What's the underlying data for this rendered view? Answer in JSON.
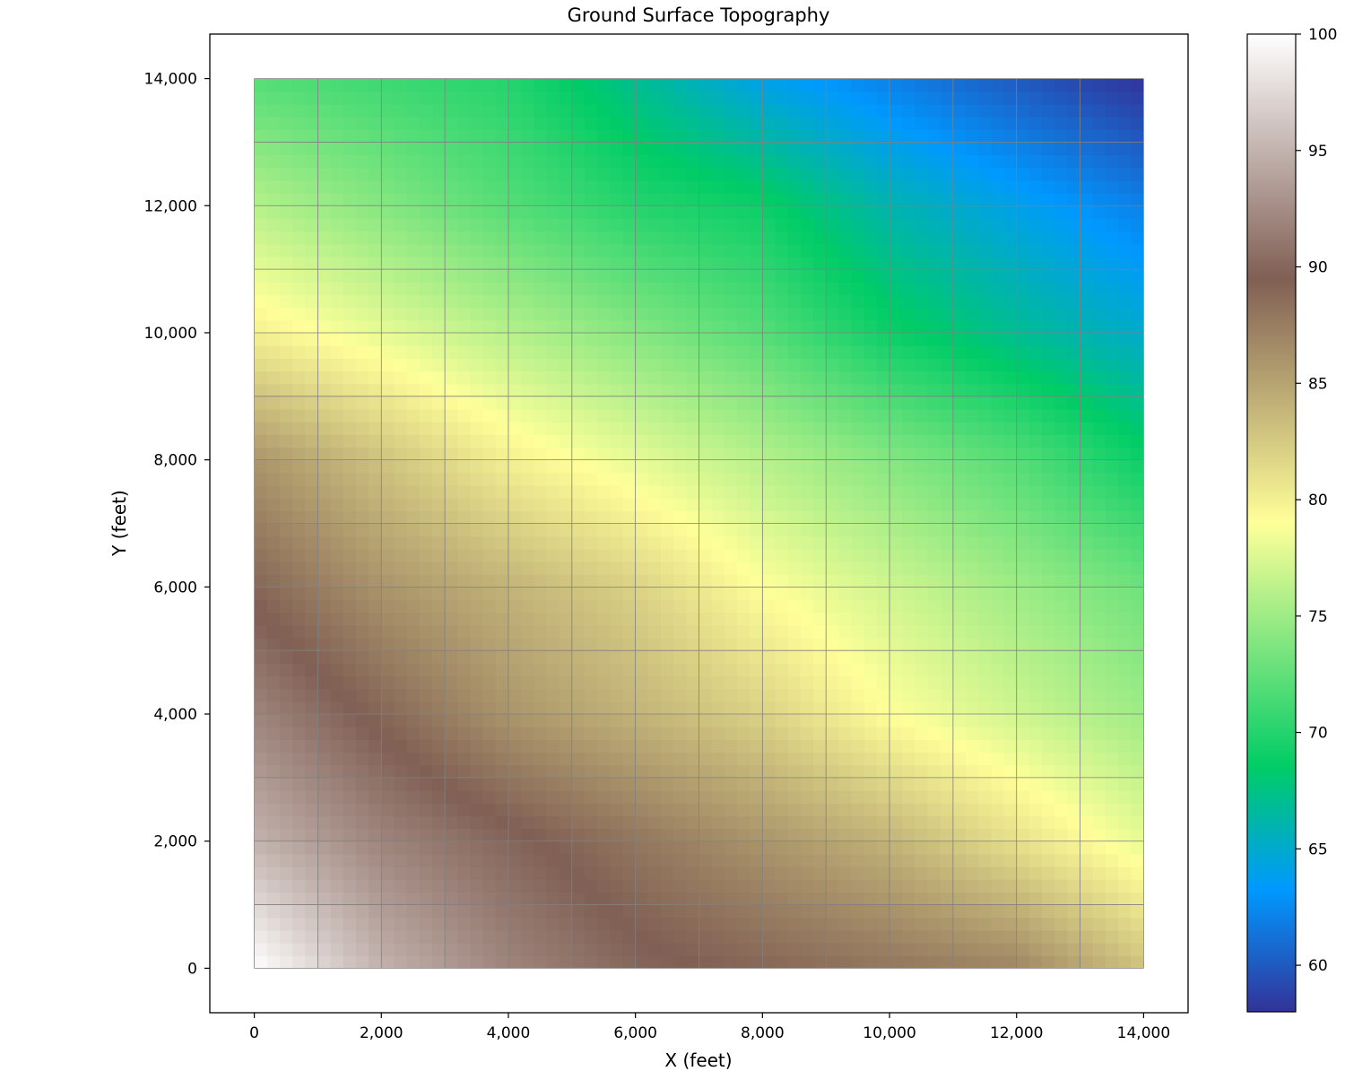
{
  "chart_data": {
    "type": "heatmap",
    "title": "Ground Surface Topography",
    "xlabel": "X (feet)",
    "ylabel": "Y (feet)",
    "xlim": [
      -700,
      14700
    ],
    "ylim": [
      -700,
      14700
    ],
    "extent": {
      "x": [
        0,
        14000
      ],
      "y": [
        0,
        14000
      ]
    },
    "grid": true,
    "grid_spacing": 1000,
    "colormap": "terrain",
    "colorbar": {
      "range": [
        58,
        100
      ],
      "ticks": [
        60,
        65,
        70,
        75,
        80,
        85,
        90,
        95,
        100
      ],
      "stops": [
        {
          "value": 58.0,
          "color": "#333399"
        },
        {
          "value": 63.25,
          "color": "#0099ff"
        },
        {
          "value": 68.5,
          "color": "#00cc66"
        },
        {
          "value": 79.0,
          "color": "#ffff99"
        },
        {
          "value": 89.5,
          "color": "#805f54"
        },
        {
          "value": 100.0,
          "color": "#ffffff"
        }
      ]
    },
    "surface": {
      "description_of_values": "elevation (feet) sampled at grid nodes",
      "x_nodes": [
        0,
        2000,
        4000,
        6000,
        8000,
        10000,
        12000,
        14000
      ],
      "y_nodes": [
        0,
        2000,
        4000,
        6000,
        8000,
        10000,
        12000,
        14000
      ],
      "z_rows_by_y": [
        [
          100,
          95,
          92,
          90,
          89,
          88,
          87,
          83
        ],
        [
          95,
          92,
          90,
          88,
          86,
          84,
          81,
          78
        ],
        [
          92,
          89,
          86,
          84,
          82,
          79,
          77,
          75
        ],
        [
          89,
          86,
          84,
          82,
          79,
          77,
          75,
          73
        ],
        [
          86,
          83,
          80,
          78,
          76,
          74,
          72,
          69
        ],
        [
          80,
          78,
          76,
          74,
          72,
          69,
          67,
          65
        ],
        [
          76,
          74,
          72,
          70,
          69,
          66,
          64,
          62
        ],
        [
          72,
          71,
          70,
          67,
          64,
          62,
          60,
          58
        ]
      ]
    },
    "x_ticks": {
      "values": [
        0,
        2000,
        4000,
        6000,
        8000,
        10000,
        12000,
        14000
      ],
      "labels": [
        "0",
        "2,000",
        "4,000",
        "6,000",
        "8,000",
        "10,000",
        "12,000",
        "14,000"
      ]
    },
    "y_ticks": {
      "values": [
        0,
        2000,
        4000,
        6000,
        8000,
        10000,
        12000,
        14000
      ],
      "labels": [
        "0",
        "2,000",
        "4,000",
        "6,000",
        "8,000",
        "10,000",
        "12,000",
        "14,000"
      ]
    }
  }
}
